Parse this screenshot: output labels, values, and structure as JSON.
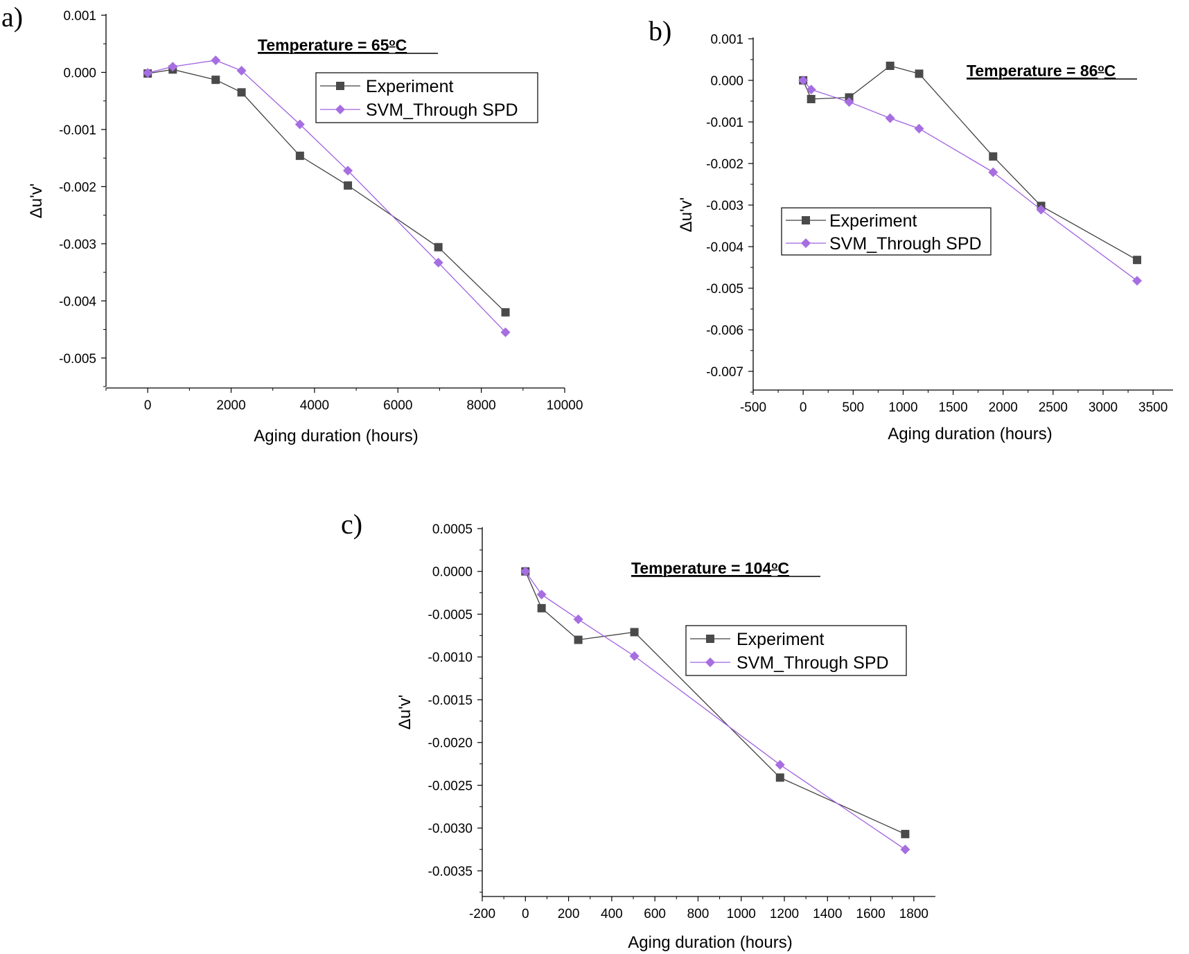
{
  "colors": {
    "experiment": "#404040",
    "experiment_marker": "#4a4a4a",
    "svm": "#a060e0",
    "svm_marker": "#a66ee0",
    "axis": "#000000"
  },
  "chart_data": [
    {
      "type": "line",
      "panel_label": "a)",
      "title": "Temperature = 65",
      "title_degree": "o",
      "title_unit": "C",
      "xlabel": "Aging duration (hours)",
      "ylabel": "Δu'v'",
      "xlim": [
        -1000,
        10000
      ],
      "ylim": [
        -0.0055,
        0.001
      ],
      "xticks": [
        0,
        2000,
        4000,
        6000,
        8000,
        10000
      ],
      "xtick_labels": [
        "0",
        "2000",
        "4000",
        "6000",
        "8000",
        "10000"
      ],
      "yticks": [
        0.001,
        0.0,
        -0.001,
        -0.002,
        -0.003,
        -0.004,
        -0.005
      ],
      "ytick_labels": [
        "0.001",
        "0.000",
        "-0.001",
        "-0.002",
        "-0.003",
        "-0.004",
        "-0.005"
      ],
      "legend_position": "top-right",
      "series": [
        {
          "name": "Experiment",
          "marker": "square",
          "x": [
            0,
            600,
            1630,
            2250,
            3650,
            4800,
            6970,
            8580
          ],
          "y": [
            -2e-05,
            5e-05,
            -0.00013,
            -0.00035,
            -0.00146,
            -0.00198,
            -0.00306,
            -0.0042
          ]
        },
        {
          "name": "SVM_Through SPD",
          "marker": "diamond",
          "x": [
            0,
            600,
            1630,
            2250,
            3650,
            4800,
            6970,
            8580
          ],
          "y": [
            -1e-05,
            0.0001,
            0.00021,
            3e-05,
            -0.00091,
            -0.00172,
            -0.00333,
            -0.00455
          ]
        }
      ]
    },
    {
      "type": "line",
      "panel_label": "b)",
      "title": "Temperature = 86",
      "title_degree": "o",
      "title_unit": "C",
      "xlabel": "Aging duration (hours)",
      "ylabel": "Δu'v'",
      "xlim": [
        -500,
        3700
      ],
      "ylim": [
        -0.0075,
        0.001
      ],
      "xticks": [
        -500,
        0,
        500,
        1000,
        1500,
        2000,
        2500,
        3000,
        3500
      ],
      "xtick_labels": [
        "-500",
        "0",
        "500",
        "1000",
        "1500",
        "2000",
        "2500",
        "3000",
        "3500"
      ],
      "yticks": [
        0.001,
        0.0,
        -0.001,
        -0.002,
        -0.003,
        -0.004,
        -0.005,
        -0.006,
        -0.007
      ],
      "ytick_labels": [
        "0.001",
        "0.000",
        "-0.001",
        "-0.002",
        "-0.003",
        "-0.004",
        "-0.005",
        "-0.006",
        "-0.007"
      ],
      "legend_position": "center-left",
      "series": [
        {
          "name": "Experiment",
          "marker": "square",
          "x": [
            0,
            80,
            460,
            870,
            1160,
            1900,
            2380,
            3340
          ],
          "y": [
            0.0,
            -0.00045,
            -0.00041,
            0.00035,
            0.00016,
            -0.00183,
            -0.00302,
            -0.00432
          ]
        },
        {
          "name": "SVM_Through SPD",
          "marker": "diamond",
          "x": [
            0,
            80,
            460,
            870,
            1160,
            1900,
            2380,
            3340
          ],
          "y": [
            0.0,
            -0.00022,
            -0.00052,
            -0.00091,
            -0.00116,
            -0.00221,
            -0.00311,
            -0.00482
          ]
        }
      ]
    },
    {
      "type": "line",
      "panel_label": "c)",
      "title": "Temperature = 104",
      "title_degree": "o",
      "title_unit": "C",
      "xlabel": "Aging duration (hours)",
      "ylabel": "Δu'v'",
      "xlim": [
        -200,
        1900
      ],
      "ylim": [
        -0.0038,
        0.0005
      ],
      "xticks": [
        -200,
        0,
        200,
        400,
        600,
        800,
        1000,
        1200,
        1400,
        1600,
        1800
      ],
      "xtick_labels": [
        "-200",
        "0",
        "200",
        "400",
        "600",
        "800",
        "1000",
        "1200",
        "1400",
        "1600",
        "1800"
      ],
      "yticks": [
        0.0005,
        0.0,
        -0.0005,
        -0.001,
        -0.0015,
        -0.002,
        -0.0025,
        -0.003,
        -0.0035
      ],
      "ytick_labels": [
        "0.0005",
        "0.0000",
        "-0.0005",
        "-0.0010",
        "-0.0015",
        "-0.0020",
        "-0.0025",
        "-0.0030",
        "-0.0035"
      ],
      "legend_position": "top-right",
      "series": [
        {
          "name": "Experiment",
          "marker": "square",
          "x": [
            0,
            75,
            245,
            505,
            1180,
            1760
          ],
          "y": [
            0.0,
            -0.00043,
            -0.0008,
            -0.00071,
            -0.00241,
            -0.00307
          ]
        },
        {
          "name": "SVM_Through SPD",
          "marker": "diamond",
          "x": [
            0,
            75,
            245,
            505,
            1180,
            1760
          ],
          "y": [
            0.0,
            -0.00027,
            -0.00056,
            -0.00099,
            -0.00226,
            -0.00325
          ]
        }
      ]
    }
  ]
}
